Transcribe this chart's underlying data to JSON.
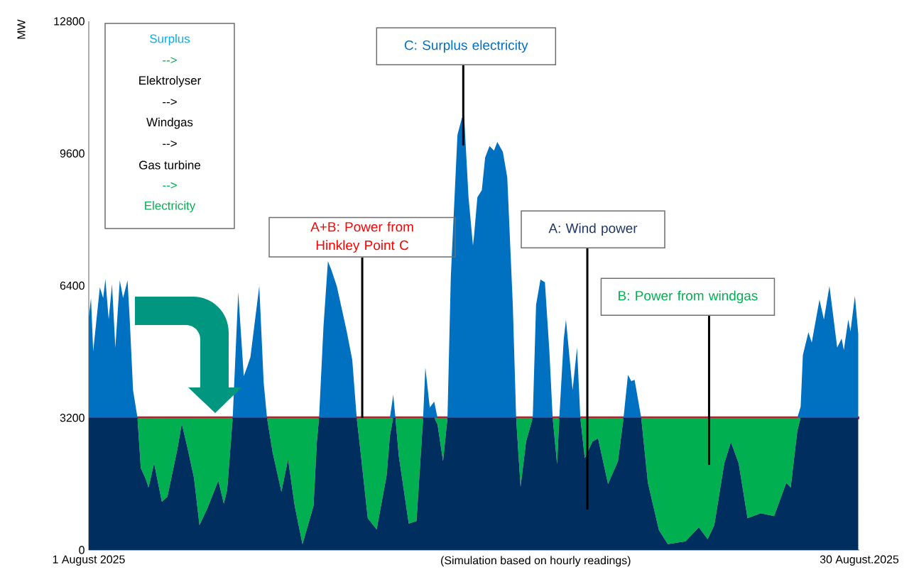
{
  "chart_data": {
    "type": "area",
    "stacked": true,
    "x": [
      "2025-08-01T00:00",
      "2025-08-01T02:00",
      "2025-08-01T04:00",
      "2025-08-01T10:00",
      "2025-08-01T13:00",
      "2025-08-01T15:00",
      "2025-08-01T18:00",
      "2025-08-01T21:00",
      "2025-08-02T00:00",
      "2025-08-02T04:00",
      "2025-08-02T07:00",
      "2025-08-02T11:00",
      "2025-08-02T13:00",
      "2025-08-02T16:00",
      "2025-08-02T20:00",
      "2025-08-02T23:00",
      "2025-08-03T03:00",
      "2025-08-03T06:00",
      "2025-08-03T11:00",
      "2025-08-03T18:00",
      "2025-08-03T23:00",
      "2025-08-04T08:00",
      "2025-08-04T12:00",
      "2025-08-04T17:00",
      "2025-08-04T23:00",
      "2025-08-05T04:00",
      "2025-08-05T11:00",
      "2025-08-05T21:00",
      "2025-08-06T02:00",
      "2025-08-06T05:00",
      "2025-08-06T10:00",
      "2025-08-06T15:00",
      "2025-08-06T20:00",
      "2025-08-06T23:00",
      "2025-08-07T02:00",
      "2025-08-07T10:00",
      "2025-08-07T14:00",
      "2025-08-07T17:00",
      "2025-08-07T22:00",
      "2025-08-08T06:00",
      "2025-08-08T12:00",
      "2025-08-08T18:00",
      "2025-08-09T01:00",
      "2025-08-09T06:00",
      "2025-08-09T11:00",
      "2025-08-09T14:00",
      "2025-08-09T16:00",
      "2025-08-09T20:00",
      "2025-08-10T00:00",
      "2025-08-10T03:00",
      "2025-08-10T08:00",
      "2025-08-10T17:00",
      "2025-08-10T22:00",
      "2025-08-11T02:00",
      "2025-08-11T05:00",
      "2025-08-11T12:00",
      "2025-08-11T20:00",
      "2025-08-12T05:00",
      "2025-08-12T08:00",
      "2025-08-12T11:00",
      "2025-08-12T13:00",
      "2025-08-12T16:00",
      "2025-08-13T01:00",
      "2025-08-13T08:00",
      "2025-08-13T14:00",
      "2025-08-13T16:00",
      "2025-08-13T20:00",
      "2025-08-14T00:00",
      "2025-08-14T03:00",
      "2025-08-14T08:00",
      "2025-08-14T12:00",
      "2025-08-14T15:00",
      "2025-08-14T21:00",
      "2025-08-15T01:00",
      "2025-08-15T03:00",
      "2025-08-15T07:00",
      "2025-08-15T11:00",
      "2025-08-15T12:00",
      "2025-08-15T15:00",
      "2025-08-15T19:00",
      "2025-08-15T22:00",
      "2025-08-16T02:00",
      "2025-08-16T06:00",
      "2025-08-16T09:00",
      "2025-08-16T14:00",
      "2025-08-16T18:00",
      "2025-08-16T23:00",
      "2025-08-17T02:00",
      "2025-08-17T06:00",
      "2025-08-17T11:00",
      "2025-08-17T17:00",
      "2025-08-17T20:00",
      "2025-08-18T00:00",
      "2025-08-18T04:00",
      "2025-08-18T08:00",
      "2025-08-18T11:00",
      "2025-08-18T15:00",
      "2025-08-18T17:00",
      "2025-08-18T21:00",
      "2025-08-18T23:00",
      "2025-08-19T05:00",
      "2025-08-19T09:00",
      "2025-08-19T12:00",
      "2025-08-19T16:00",
      "2025-08-19T23:00",
      "2025-08-20T04:00",
      "2025-08-20T13:00",
      "2025-08-20T22:00",
      "2025-08-21T03:00",
      "2025-08-21T07:00",
      "2025-08-21T10:00",
      "2025-08-21T13:00",
      "2025-08-21T18:00",
      "2025-08-21T19:00",
      "2025-08-22T01:00",
      "2025-08-22T11:00",
      "2025-08-22T19:00",
      "2025-08-23T11:00",
      "2025-08-23T23:00",
      "2025-08-24T07:00",
      "2025-08-24T13:00",
      "2025-08-24T22:00",
      "2025-08-25T04:00",
      "2025-08-25T11:00",
      "2025-08-25T19:00",
      "2025-08-26T07:00",
      "2025-08-26T19:00",
      "2025-08-27T06:00",
      "2025-08-27T10:00",
      "2025-08-27T16:00",
      "2025-08-27T19:00",
      "2025-08-27T21:00",
      "2025-08-28T02:00",
      "2025-08-28T05:00",
      "2025-08-28T12:00",
      "2025-08-28T16:00",
      "2025-08-28T21:00",
      "2025-08-29T04:00",
      "2025-08-29T08:00",
      "2025-08-29T10:00",
      "2025-08-29T14:00",
      "2025-08-29T16:00",
      "2025-08-29T20:00",
      "2025-08-29T23:00"
    ],
    "series": [
      {
        "name": "A: Wind power",
        "color": "#002f5f",
        "values": [
          3200,
          3200,
          3200,
          3200,
          3200,
          3200,
          3200,
          3200,
          3200,
          3200,
          3200,
          3200,
          3200,
          3200,
          3200,
          1980,
          1750,
          1510,
          2100,
          1170,
          1290,
          2440,
          3060,
          2490,
          1750,
          600,
          1000,
          1680,
          1120,
          1460,
          3200,
          3200,
          3200,
          3200,
          3200,
          3200,
          3200,
          3200,
          2370,
          1410,
          2200,
          1070,
          140,
          600,
          1070,
          2610,
          3200,
          3200,
          3200,
          3200,
          3200,
          3200,
          3200,
          3200,
          2490,
          770,
          500,
          1800,
          2770,
          3200,
          3200,
          2280,
          640,
          700,
          3200,
          3200,
          3200,
          3200,
          3040,
          2150,
          3200,
          3200,
          3200,
          3200,
          3200,
          3200,
          3200,
          3200,
          3200,
          3200,
          3200,
          3200,
          3200,
          3200,
          3200,
          3200,
          3200,
          3200,
          1530,
          2630,
          3200,
          3200,
          3200,
          3200,
          3200,
          3200,
          2080,
          3200,
          3200,
          3200,
          3200,
          3200,
          3200,
          2220,
          2630,
          2700,
          1600,
          2150,
          3200,
          3200,
          3200,
          3200,
          3200,
          3200,
          1630,
          480,
          140,
          210,
          550,
          260,
          600,
          2100,
          2610,
          2100,
          770,
          890,
          820,
          1630,
          1510,
          2890,
          3200,
          3200,
          3200,
          3200,
          3200,
          3200,
          3200,
          3200,
          3200,
          3200,
          3200,
          3200,
          3200,
          3200
        ]
      },
      {
        "name": "B: Power from windgas",
        "color": "#00b050",
        "values": [
          0,
          0,
          0,
          0,
          0,
          0,
          0,
          0,
          0,
          0,
          0,
          0,
          0,
          0,
          0,
          1220,
          1450,
          1690,
          1100,
          2030,
          1910,
          760,
          140,
          710,
          1450,
          2600,
          2200,
          1520,
          2080,
          1740,
          0,
          0,
          0,
          0,
          0,
          0,
          0,
          0,
          830,
          1790,
          1000,
          2130,
          3060,
          2600,
          2130,
          590,
          0,
          0,
          0,
          0,
          0,
          0,
          0,
          0,
          710,
          2430,
          2700,
          1400,
          430,
          0,
          0,
          920,
          2560,
          2500,
          0,
          0,
          0,
          0,
          160,
          1050,
          0,
          0,
          0,
          0,
          0,
          0,
          0,
          0,
          0,
          0,
          0,
          0,
          0,
          0,
          0,
          0,
          0,
          0,
          1670,
          570,
          0,
          0,
          0,
          0,
          0,
          0,
          1120,
          0,
          0,
          0,
          0,
          0,
          0,
          980,
          570,
          500,
          1600,
          1050,
          0,
          0,
          0,
          0,
          0,
          0,
          1570,
          2720,
          3060,
          2990,
          2650,
          2940,
          2600,
          1100,
          590,
          1100,
          2430,
          2310,
          2380,
          1570,
          1690,
          310,
          0,
          0,
          0,
          0,
          0,
          0,
          0,
          0,
          0,
          0,
          0,
          0,
          0,
          0
        ]
      },
      {
        "name": "C: Surplus electricity",
        "color": "#0070c0",
        "values": [
          2440,
          2900,
          1610,
          3160,
          2900,
          3360,
          2380,
          3240,
          1700,
          3330,
          2900,
          3330,
          2380,
          670,
          0,
          0,
          0,
          0,
          0,
          0,
          0,
          0,
          0,
          0,
          0,
          0,
          0,
          0,
          0,
          0,
          0,
          3040,
          1010,
          1230,
          1470,
          3190,
          840,
          0,
          0,
          0,
          0,
          0,
          0,
          0,
          0,
          0,
          0,
          2210,
          3790,
          3590,
          3190,
          2090,
          1400,
          0,
          0,
          0,
          0,
          0,
          0,
          560,
          0,
          0,
          0,
          0,
          0,
          1220,
          250,
          390,
          0,
          0,
          0,
          3410,
          6850,
          7260,
          7330,
          5340,
          4170,
          4410,
          5340,
          5510,
          6300,
          6580,
          6470,
          6680,
          6440,
          5820,
          2730,
          0,
          0,
          0,
          0,
          2730,
          3350,
          3280,
          1630,
          0,
          0,
          0,
          1900,
          2380,
          670,
          1700,
          0,
          0,
          0,
          0,
          0,
          0,
          0,
          1040,
          890,
          920,
          150,
          0,
          0,
          0,
          0,
          0,
          0,
          0,
          0,
          0,
          0,
          0,
          0,
          0,
          0,
          0,
          0,
          0,
          270,
          1520,
          2070,
          1820,
          2860,
          2380,
          3190,
          1700,
          1920,
          1640,
          2380,
          2090,
          2950,
          2040
        ]
      }
    ],
    "xlim": [
      "2025-08-01",
      "2025-08-30"
    ],
    "xticks": [
      {
        "value": "2025-08-01",
        "label": "1 August 2025"
      },
      {
        "value": "2025-08-30",
        "label": "30 August.2025"
      }
    ],
    "ylim": [
      0,
      12800
    ],
    "yticks": [
      0,
      3200,
      6400,
      9600,
      12800
    ],
    "ylabel": "MW",
    "xlabel": "(Simulation based on hourly readings)",
    "ref_lines": [
      {
        "axis": "y",
        "value": 3200,
        "color": "#e8001c"
      }
    ],
    "annotations": [
      "Surplus",
      "-->",
      "Elektrolyser",
      "-->",
      "Windgas",
      "-->",
      "Gas turbine",
      "-->",
      "Electricity",
      {
        "text": "A+B: Power from Hinkley Point C",
        "x": "2025-08-11T07:00",
        "y": 3200
      }
    ]
  }
}
